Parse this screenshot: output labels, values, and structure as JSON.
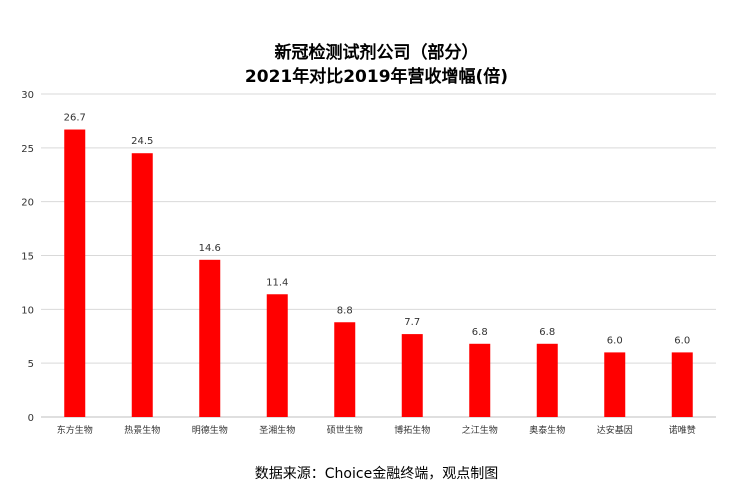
{
  "chart_data": {
    "type": "bar",
    "title_line1": "新冠检测试剂公司（部分）",
    "title_line2": "2021年对比2019年营收增幅(倍)",
    "categories": [
      "东方生物",
      "热景生物",
      "明德生物",
      "圣湘生物",
      "硕世生物",
      "博拓生物",
      "之江生物",
      "奥泰生物",
      "达安基因",
      "诺唯赞"
    ],
    "values": [
      26.7,
      24.5,
      14.6,
      11.4,
      8.8,
      7.7,
      6.8,
      6.8,
      6.0,
      6.0
    ],
    "value_labels": [
      "26.7",
      "24.5",
      "14.6",
      "11.4",
      "8.8",
      "7.7",
      "6.8",
      "6.8",
      "6.0",
      "6.0"
    ],
    "y_ticks": [
      "0",
      "5",
      "10",
      "15",
      "20",
      "25",
      "30"
    ],
    "ylim": [
      0,
      30
    ],
    "grid": true,
    "bar_color": "#ff0000",
    "grid_color": "#d9d9d9",
    "source": "数据来源：Choice金融终端，观点制图"
  }
}
